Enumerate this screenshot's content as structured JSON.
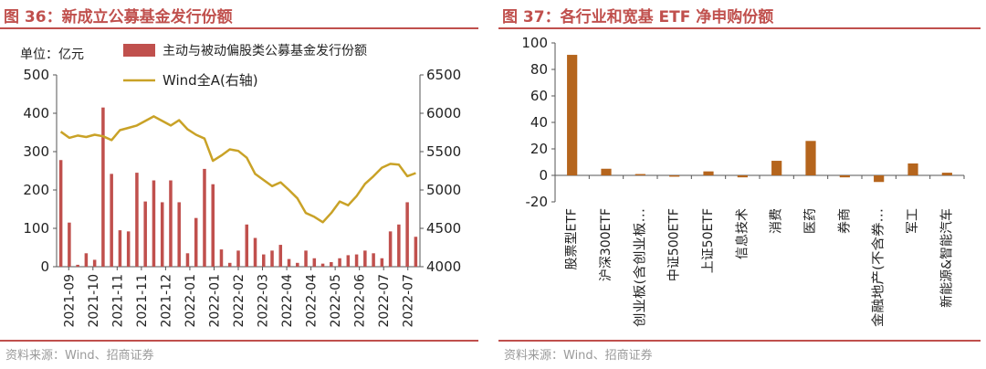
{
  "left": {
    "title": "图 36：新成立公募基金发行份额",
    "source": "资料来源：Wind、招商证券"
  },
  "right": {
    "title": "图 37：各行业和宽基 ETF 净申购份额",
    "source": "资料来源：Wind、招商证券"
  },
  "chart_data": [
    {
      "type": "bar",
      "title": "新成立公募基金发行份额",
      "unit_label": "单位：亿元",
      "legend_position": "top",
      "grid": false,
      "x_tick_labels": [
        "2021-09",
        "2021-10",
        "2021-11",
        "2021-11",
        "2021-12",
        "2022-01",
        "2022-01",
        "2022-02",
        "2022-03",
        "2022-04",
        "2022-04",
        "2022-05",
        "2022-06",
        "2022-07",
        "2022-07"
      ],
      "ylim": [
        0,
        500
      ],
      "yticks": [
        0,
        100,
        200,
        300,
        400,
        500
      ],
      "y2lim": [
        4000,
        6500
      ],
      "y2ticks": [
        4000,
        4500,
        5000,
        5500,
        6000,
        6500
      ],
      "series": [
        {
          "name": "主动与被动偏股类公募基金发行份额",
          "type": "bar",
          "axis": "left",
          "color": "#c0504d",
          "values": [
            278,
            115,
            5,
            35,
            18,
            415,
            242,
            95,
            92,
            245,
            170,
            225,
            168,
            225,
            168,
            35,
            127,
            255,
            215,
            45,
            10,
            42,
            110,
            75,
            32,
            42,
            57,
            20,
            10,
            42,
            22,
            8,
            12,
            22,
            30,
            32,
            42,
            35,
            22,
            92,
            110,
            168,
            78
          ]
        },
        {
          "name": "Wind全A(右轴)",
          "type": "line",
          "axis": "right",
          "color": "#c9a227",
          "values": [
            5760,
            5680,
            5710,
            5690,
            5720,
            5700,
            5650,
            5780,
            5810,
            5840,
            5900,
            5960,
            5900,
            5840,
            5910,
            5790,
            5720,
            5670,
            5380,
            5450,
            5530,
            5510,
            5420,
            5210,
            5130,
            5050,
            5100,
            5000,
            4890,
            4700,
            4650,
            4580,
            4700,
            4850,
            4800,
            4920,
            5080,
            5180,
            5290,
            5340,
            5330,
            5180,
            5220
          ]
        }
      ]
    },
    {
      "type": "bar",
      "title": "各行业和宽基 ETF 净申购份额",
      "ylim": [
        -20,
        100
      ],
      "yticks": [
        -20,
        0,
        20,
        40,
        60,
        80,
        100
      ],
      "grid": false,
      "color": "#b5651d",
      "categories": [
        "股票型ETF",
        "沪深300ETF",
        "创业板(含创业板…",
        "中证500ETF",
        "上证50ETF",
        "信息技术",
        "消费",
        "医药",
        "券商",
        "金融地产(不含券…",
        "军工",
        "新能源&智能汽车"
      ],
      "values": [
        91,
        5,
        1,
        -1,
        3,
        -1.5,
        11,
        26,
        -1.5,
        -5,
        9,
        2
      ]
    }
  ]
}
